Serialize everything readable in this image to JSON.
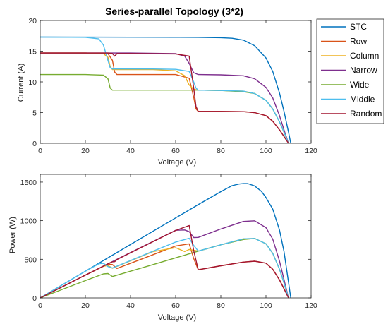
{
  "colors": {
    "STC": "#0072BD",
    "Row": "#D95319",
    "Column": "#EDB120",
    "Narrow": "#7E2F8E",
    "Wide": "#77AC30",
    "Middle": "#4DBEEE",
    "Random": "#A2142F"
  },
  "chart_data": [
    {
      "type": "line",
      "title": "Series-parallel Topology (3*2)",
      "xlabel": "Voltage (V)",
      "ylabel": "Current (A)",
      "xlim": [
        0,
        120
      ],
      "ylim": [
        0,
        20
      ],
      "xticks": [
        "0",
        "20",
        "40",
        "60",
        "80",
        "100",
        "120"
      ],
      "yticks": [
        "0",
        "5",
        "10",
        "15",
        "20"
      ],
      "grid": false,
      "legend_position": "outside-right",
      "series": [
        {
          "name": "STC",
          "x": [
            0,
            20,
            40,
            60,
            70,
            80,
            85,
            90,
            95,
            100,
            103,
            106,
            108,
            110,
            111
          ],
          "y": [
            17.3,
            17.29,
            17.28,
            17.26,
            17.25,
            17.2,
            17.1,
            16.8,
            15.9,
            13.9,
            11.7,
            8.2,
            5.2,
            1.8,
            0
          ]
        },
        {
          "name": "Row",
          "x": [
            0,
            20,
            30,
            32,
            33,
            34,
            50,
            60,
            66,
            68,
            69,
            70,
            80,
            90,
            95,
            100,
            103,
            106,
            108,
            110
          ],
          "y": [
            14.7,
            14.7,
            14.6,
            13.5,
            11.6,
            11.2,
            11.2,
            11.2,
            10.6,
            7.5,
            5.6,
            5.2,
            5.2,
            5.15,
            5.0,
            4.5,
            3.6,
            2.2,
            1.1,
            0
          ]
        },
        {
          "name": "Column",
          "x": [
            0,
            20,
            28,
            30,
            31,
            32,
            50,
            60,
            64,
            66,
            68,
            70,
            80,
            90,
            95,
            100,
            103,
            106,
            108,
            110
          ],
          "y": [
            14.7,
            14.7,
            14.6,
            14.0,
            12.5,
            12.0,
            12.0,
            11.8,
            11.0,
            9.5,
            8.8,
            8.65,
            8.6,
            8.5,
            8.1,
            7.0,
            5.6,
            3.5,
            1.8,
            0
          ]
        },
        {
          "name": "Narrow",
          "x": [
            0,
            20,
            40,
            60,
            64,
            66,
            68,
            70,
            80,
            90,
            95,
            100,
            103,
            106,
            108,
            110
          ],
          "y": [
            14.7,
            14.7,
            14.7,
            14.6,
            14.2,
            13.0,
            11.5,
            11.2,
            11.15,
            11.0,
            10.5,
            9.1,
            7.4,
            4.5,
            2.2,
            0
          ]
        },
        {
          "name": "Wide",
          "x": [
            0,
            20,
            28,
            30,
            31,
            32,
            50,
            70,
            80,
            90,
            95,
            100,
            103,
            106,
            108,
            110
          ],
          "y": [
            11.2,
            11.2,
            11.1,
            10.5,
            9.0,
            8.65,
            8.65,
            8.65,
            8.6,
            8.4,
            8.1,
            7.0,
            5.6,
            3.5,
            1.8,
            0
          ]
        },
        {
          "name": "Middle",
          "x": [
            0,
            20,
            26,
            28,
            30,
            31,
            32,
            50,
            60,
            66,
            68,
            69,
            70,
            80,
            90,
            95,
            100,
            103,
            106,
            108,
            110
          ],
          "y": [
            17.3,
            17.25,
            17.0,
            16.0,
            13.5,
            12.3,
            12.1,
            12.1,
            12.05,
            11.7,
            10.0,
            9.0,
            8.65,
            8.6,
            8.5,
            8.1,
            7.0,
            5.6,
            3.5,
            1.8,
            0
          ]
        },
        {
          "name": "Random",
          "x": [
            0,
            20,
            30,
            32,
            33,
            34,
            40,
            60,
            66,
            68,
            69,
            70,
            80,
            90,
            95,
            100,
            103,
            106,
            108,
            110
          ],
          "y": [
            14.7,
            14.7,
            14.7,
            14.6,
            14.2,
            14.6,
            14.6,
            14.55,
            14.2,
            9.0,
            6.0,
            5.2,
            5.2,
            5.15,
            5.0,
            4.5,
            3.6,
            2.2,
            1.1,
            0
          ]
        }
      ]
    },
    {
      "type": "line",
      "title": "",
      "xlabel": "Voltage (V)",
      "ylabel": "Power (W)",
      "xlim": [
        0,
        120
      ],
      "ylim": [
        0,
        1600
      ],
      "xticks": [
        "0",
        "20",
        "40",
        "60",
        "80",
        "100",
        "120"
      ],
      "yticks": [
        "0",
        "500",
        "1000",
        "1500"
      ],
      "grid": false,
      "series": [
        {
          "name": "STC",
          "x": [
            0,
            20,
            40,
            60,
            70,
            80,
            85,
            88,
            90,
            92,
            95,
            98,
            100,
            103,
            106,
            108,
            110,
            111
          ],
          "y": [
            0,
            346,
            691,
            1036,
            1208,
            1376,
            1454,
            1475,
            1480,
            1480,
            1450,
            1380,
            1300,
            1150,
            880,
            600,
            200,
            0
          ]
        },
        {
          "name": "Row",
          "x": [
            0,
            20,
            30,
            32,
            34,
            50,
            60,
            66,
            68,
            70,
            80,
            90,
            95,
            100,
            103,
            106,
            108,
            110
          ],
          "y": [
            0,
            294,
            438,
            432,
            381,
            560,
            672,
            700,
            510,
            364,
            416,
            464,
            475,
            450,
            371,
            233,
            119,
            0
          ]
        },
        {
          "name": "Column",
          "x": [
            0,
            20,
            28,
            30,
            32,
            50,
            60,
            64,
            66,
            70,
            80,
            90,
            95,
            100,
            103,
            106,
            108,
            110
          ],
          "y": [
            0,
            294,
            409,
            420,
            384,
            600,
            650,
            600,
            627,
            606,
            688,
            765,
            770,
            700,
            577,
            371,
            194,
            0
          ]
        },
        {
          "name": "Narrow",
          "x": [
            0,
            20,
            40,
            60,
            64,
            66,
            68,
            70,
            80,
            90,
            95,
            100,
            103,
            106,
            108,
            110
          ],
          "y": [
            0,
            294,
            588,
            876,
            880,
            858,
            782,
            784,
            892,
            990,
            998,
            910,
            762,
            477,
            238,
            0
          ]
        },
        {
          "name": "Wide",
          "x": [
            0,
            20,
            28,
            30,
            32,
            50,
            70,
            80,
            90,
            95,
            100,
            103,
            106,
            108,
            110
          ],
          "y": [
            0,
            224,
            311,
            315,
            277,
            432,
            605,
            688,
            756,
            770,
            700,
            577,
            371,
            194,
            0
          ]
        },
        {
          "name": "Middle",
          "x": [
            0,
            20,
            26,
            28,
            30,
            32,
            50,
            60,
            66,
            68,
            70,
            80,
            90,
            95,
            100,
            103,
            106,
            108,
            110
          ],
          "y": [
            0,
            345,
            442,
            448,
            405,
            387,
            605,
            723,
            772,
            680,
            606,
            688,
            765,
            770,
            700,
            577,
            371,
            194,
            0
          ]
        },
        {
          "name": "Random",
          "x": [
            0,
            20,
            30,
            32,
            33,
            34,
            40,
            60,
            66,
            68,
            70,
            80,
            90,
            95,
            100,
            103,
            106,
            108,
            110
          ],
          "y": [
            0,
            294,
            441,
            467,
            469,
            496,
            584,
            873,
            937,
            612,
            364,
            416,
            464,
            475,
            450,
            371,
            233,
            119,
            0
          ]
        }
      ]
    }
  ]
}
